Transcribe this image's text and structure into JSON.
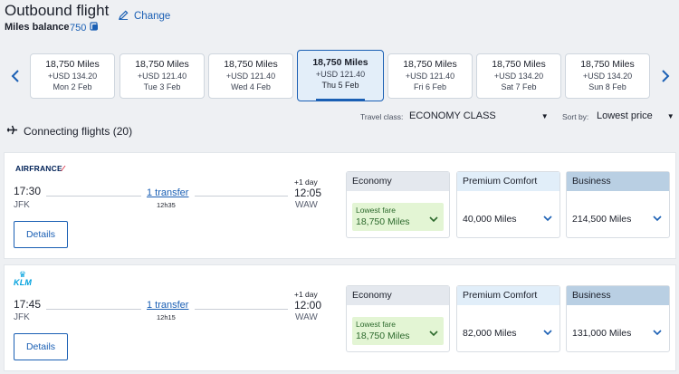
{
  "header": {
    "title": "Outbound flight",
    "change_label": "Change",
    "miles_balance_label": "Miles balance",
    "miles_balance_value": "750"
  },
  "date_cards": [
    {
      "miles": "18,750 Miles",
      "usd": "+USD 134.20",
      "date": "Mon 2 Feb",
      "selected": false
    },
    {
      "miles": "18,750 Miles",
      "usd": "+USD 121.40",
      "date": "Tue 3 Feb",
      "selected": false
    },
    {
      "miles": "18,750 Miles",
      "usd": "+USD 121.40",
      "date": "Wed 4 Feb",
      "selected": false
    },
    {
      "miles": "18,750 Miles",
      "usd": "+USD 121.40",
      "date": "Thu 5 Feb",
      "selected": true
    },
    {
      "miles": "18,750 Miles",
      "usd": "+USD 121.40",
      "date": "Fri 6 Feb",
      "selected": false
    },
    {
      "miles": "18,750 Miles",
      "usd": "+USD 134.20",
      "date": "Sat 7 Feb",
      "selected": false
    },
    {
      "miles": "18,750 Miles",
      "usd": "+USD 134.20",
      "date": "Sun 8 Feb",
      "selected": false
    }
  ],
  "filters": {
    "travel_class_label": "Travel class:",
    "travel_class_value": "ECONOMY CLASS",
    "sort_label": "Sort by:",
    "sort_value": "Lowest price"
  },
  "connecting_label": "Connecting flights (20)",
  "flights": [
    {
      "airline": "AIRFRANCE",
      "dep_time": "17:30",
      "dep_code": "JFK",
      "transfer": "1 transfer",
      "duration": "12h35",
      "plus_day": "+1 day",
      "arr_time": "12:05",
      "arr_code": "WAW",
      "details_label": "Details",
      "fares": {
        "economy_label": "Economy",
        "lowest_label": "Lowest fare",
        "economy_price": "18,750 Miles",
        "premium_label": "Premium Comfort",
        "premium_price": "40,000 Miles",
        "business_label": "Business",
        "business_price": "214,500 Miles"
      }
    },
    {
      "airline": "KLM",
      "dep_time": "17:45",
      "dep_code": "JFK",
      "transfer": "1 transfer",
      "duration": "12h15",
      "plus_day": "+1 day",
      "arr_time": "12:00",
      "arr_code": "WAW",
      "details_label": "Details",
      "fares": {
        "economy_label": "Economy",
        "lowest_label": "Lowest fare",
        "economy_price": "18,750 Miles",
        "premium_label": "Premium Comfort",
        "premium_price": "82,000 Miles",
        "business_label": "Business",
        "business_price": "131,000 Miles"
      }
    }
  ],
  "colors": {
    "accent": "#1a5fb4",
    "lowest_fare_bg": "#e3f5d4",
    "lowest_fare_text": "#2d6a2d"
  },
  "icons": {
    "change": "pencil-icon",
    "miles": "miles-card-icon",
    "prev": "chevron-left-icon",
    "next": "chevron-right-icon",
    "connecting": "airplane-icon",
    "dropdown": "caret-down-icon",
    "fare_expand": "chevron-down-icon"
  }
}
